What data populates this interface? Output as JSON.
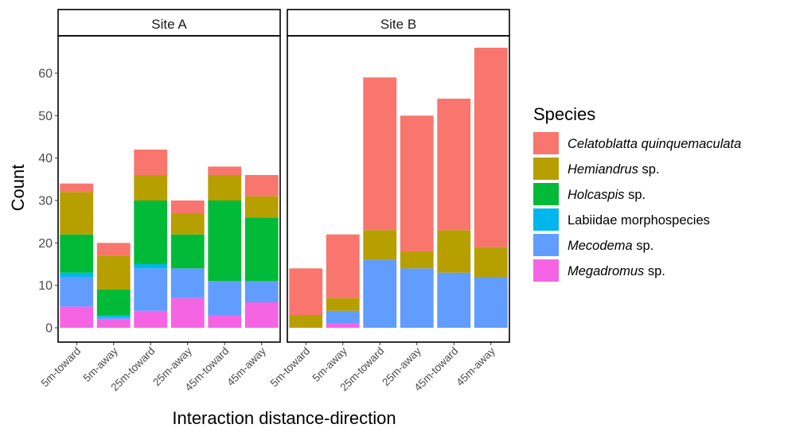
{
  "chart_data": {
    "type": "bar",
    "stacked": true,
    "xlabel": "Interaction distance-direction",
    "ylabel": "Count",
    "ylim": [
      0,
      68
    ],
    "yticks": [
      0,
      10,
      20,
      30,
      40,
      50,
      60
    ],
    "grid": false,
    "legend_position": "right",
    "legend_title": "Species",
    "categories": [
      "5m-toward",
      "5m-away",
      "25m-toward",
      "25m-away",
      "45m-toward",
      "45m-away"
    ],
    "series": [
      {
        "name": "Megadromus sp.",
        "name_italic": "Megadromus",
        "name_rest": " sp.",
        "color": "#F564E3"
      },
      {
        "name": "Mecodema sp.",
        "name_italic": "Mecodema",
        "name_rest": " sp.",
        "color": "#619CFF"
      },
      {
        "name": "Labiidae morphospecies",
        "name_italic": "",
        "name_rest": "Labiidae morphospecies",
        "color": "#00B6EB"
      },
      {
        "name": "Holcaspis sp.",
        "name_italic": "Holcaspis",
        "name_rest": " sp.",
        "color": "#00BA38"
      },
      {
        "name": "Hemiandrus sp.",
        "name_italic": "Hemiandrus",
        "name_rest": " sp.",
        "color": "#B79F00"
      },
      {
        "name": "Celatoblatta quinquemaculata",
        "name_italic": "Celatoblatta quinquemaculata",
        "name_rest": "",
        "color": "#F8766D"
      }
    ],
    "legend_order": [
      5,
      4,
      3,
      2,
      1,
      0
    ],
    "panels": [
      {
        "title": "Site A",
        "values": {
          "Megadromus sp.": [
            5,
            2,
            4,
            7,
            3,
            6
          ],
          "Mecodema sp.": [
            7,
            0.5,
            10,
            7,
            8,
            5
          ],
          "Labiidae morphospecies": [
            1,
            0.5,
            1,
            0,
            0,
            0
          ],
          "Holcaspis sp.": [
            9,
            6,
            15,
            8,
            19,
            15
          ],
          "Hemiandrus sp.": [
            10,
            8,
            6,
            5,
            6,
            5
          ],
          "Celatoblatta quinquemaculata": [
            2,
            3,
            6,
            3,
            2,
            5
          ]
        }
      },
      {
        "title": "Site B",
        "values": {
          "Megadromus sp.": [
            0,
            1,
            0,
            0,
            0,
            0
          ],
          "Mecodema sp.": [
            0,
            3,
            16,
            14,
            13,
            12
          ],
          "Labiidae morphospecies": [
            0,
            0,
            0,
            0,
            0,
            0
          ],
          "Holcaspis sp.": [
            0,
            0,
            0,
            0,
            0,
            0
          ],
          "Hemiandrus sp.": [
            3,
            3,
            7,
            4,
            10,
            7
          ],
          "Celatoblatta quinquemaculata": [
            11,
            15,
            36,
            32,
            31,
            47
          ]
        }
      }
    ]
  }
}
